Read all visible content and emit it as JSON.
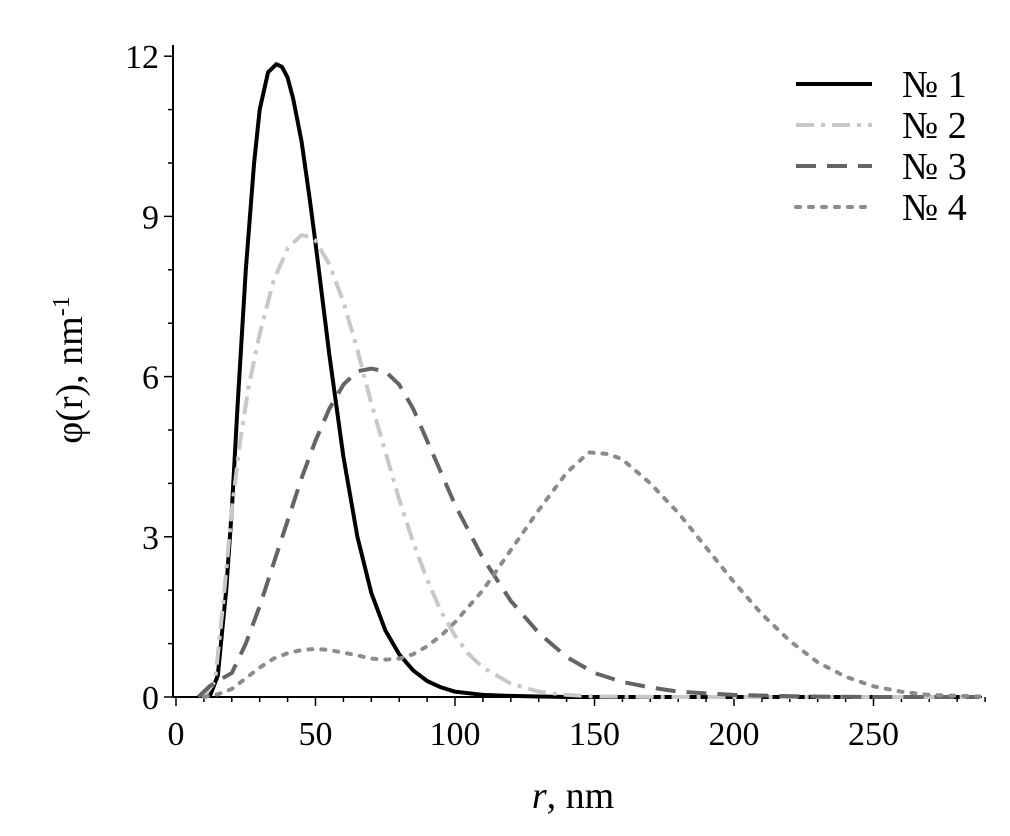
{
  "chart_data": {
    "type": "line",
    "title": "",
    "xlabel": {
      "italic": "r",
      "rest": ", nm"
    },
    "ylabel": {
      "base": "φ(r), nm",
      "sup": "-1"
    },
    "xlim": [
      0,
      290
    ],
    "ylim": [
      0,
      12.2
    ],
    "xticks": [
      0,
      50,
      100,
      150,
      200,
      250
    ],
    "yticks": [
      0,
      3,
      6,
      9,
      12
    ],
    "x_minor_step": 10,
    "y_minor_step": 1,
    "grid": false,
    "legend_position": "top-right",
    "series": [
      {
        "name": "№ 1",
        "color": "#000000",
        "style": "solid",
        "x": [
          12,
          15,
          18,
          20,
          22,
          25,
          28,
          30,
          33,
          36,
          38,
          40,
          42,
          45,
          48,
          50,
          55,
          60,
          65,
          70,
          75,
          80,
          85,
          90,
          95,
          100,
          110,
          120,
          130,
          140,
          150,
          175,
          200,
          250,
          288
        ],
        "y": [
          0,
          0.4,
          2.0,
          3.5,
          5.4,
          8.0,
          10.0,
          11.0,
          11.7,
          11.85,
          11.8,
          11.6,
          11.2,
          10.4,
          9.3,
          8.5,
          6.4,
          4.5,
          3.0,
          1.95,
          1.25,
          0.8,
          0.5,
          0.3,
          0.18,
          0.1,
          0.04,
          0.02,
          0.01,
          0.0,
          0.0,
          0.0,
          0.0,
          0.0,
          0.0
        ]
      },
      {
        "name": "№ 2",
        "color": "#c8c8c8",
        "style": "dashdot",
        "x": [
          10,
          14,
          17,
          20,
          23,
          26,
          30,
          35,
          40,
          45,
          48,
          50,
          55,
          60,
          65,
          70,
          75,
          80,
          85,
          90,
          95,
          100,
          105,
          110,
          120,
          130,
          140,
          150,
          175,
          200,
          250,
          288
        ],
        "y": [
          0,
          0.3,
          1.8,
          3.5,
          4.8,
          5.8,
          6.8,
          7.8,
          8.4,
          8.65,
          8.62,
          8.55,
          8.1,
          7.4,
          6.5,
          5.5,
          4.6,
          3.7,
          2.9,
          2.2,
          1.6,
          1.15,
          0.8,
          0.55,
          0.25,
          0.1,
          0.04,
          0.01,
          0.0,
          0.0,
          0.0,
          0.0
        ]
      },
      {
        "name": "№ 3",
        "color": "#646464",
        "style": "dash",
        "x": [
          8,
          12,
          15,
          20,
          25,
          30,
          35,
          40,
          45,
          50,
          55,
          60,
          65,
          70,
          75,
          80,
          85,
          90,
          95,
          100,
          110,
          120,
          130,
          140,
          150,
          160,
          170,
          180,
          200,
          225,
          250,
          288
        ],
        "y": [
          0,
          0.2,
          0.3,
          0.45,
          1.0,
          1.7,
          2.5,
          3.3,
          4.1,
          4.8,
          5.4,
          5.85,
          6.1,
          6.15,
          6.1,
          5.85,
          5.4,
          4.8,
          4.2,
          3.6,
          2.6,
          1.8,
          1.2,
          0.75,
          0.45,
          0.28,
          0.18,
          0.1,
          0.04,
          0.01,
          0.0,
          0.0
        ]
      },
      {
        "name": "№ 4",
        "color": "#8c8c8c",
        "style": "dot",
        "x": [
          10,
          15,
          20,
          25,
          30,
          35,
          40,
          45,
          50,
          55,
          60,
          65,
          70,
          75,
          80,
          85,
          90,
          95,
          100,
          110,
          120,
          130,
          140,
          148,
          155,
          160,
          170,
          180,
          190,
          200,
          210,
          220,
          230,
          240,
          250,
          260,
          270,
          288
        ],
        "y": [
          0,
          0.05,
          0.15,
          0.35,
          0.55,
          0.72,
          0.82,
          0.88,
          0.9,
          0.88,
          0.83,
          0.78,
          0.72,
          0.7,
          0.72,
          0.8,
          0.95,
          1.15,
          1.4,
          2.0,
          2.75,
          3.5,
          4.2,
          4.58,
          4.55,
          4.45,
          4.0,
          3.45,
          2.8,
          2.15,
          1.55,
          1.05,
          0.65,
          0.38,
          0.2,
          0.1,
          0.04,
          0.01
        ]
      }
    ]
  }
}
